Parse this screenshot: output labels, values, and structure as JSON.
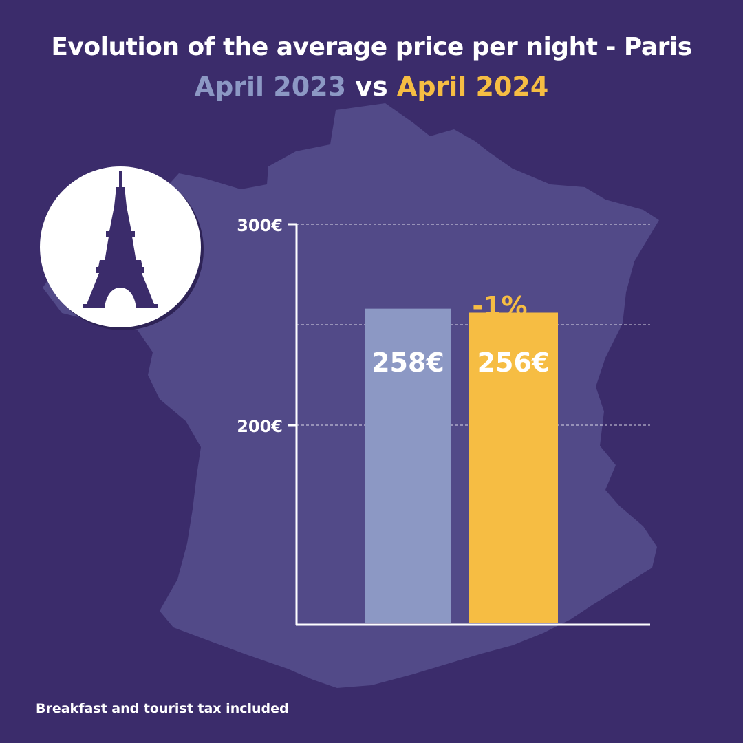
{
  "title": "Evolution of the average price per night - Paris",
  "subtitle": {
    "period_2023": "April 2023",
    "vs": "vs",
    "period_2024": "April 2024"
  },
  "icon": "eiffel-tower-icon",
  "footnote": "Breakfast and tourist tax included",
  "colors": {
    "background": "#3b2c6b",
    "map": "#524a88",
    "bar_2023": "#8c98c4",
    "bar_2024": "#f6bd43",
    "text": "#ffffff"
  },
  "chart_data": {
    "type": "bar",
    "categories": [
      "April 2023",
      "April 2024"
    ],
    "values": [
      258,
      256
    ],
    "data_labels": [
      "258€",
      "256€"
    ],
    "change_label": "-1%",
    "yticks": [
      200,
      300
    ],
    "ytick_labels": [
      "200€",
      "300€"
    ],
    "grid_lines": [
      200,
      250,
      300
    ],
    "ylim": [
      100,
      300
    ],
    "title": "Evolution of the average price per night - Paris",
    "xlabel": "",
    "ylabel": ""
  }
}
